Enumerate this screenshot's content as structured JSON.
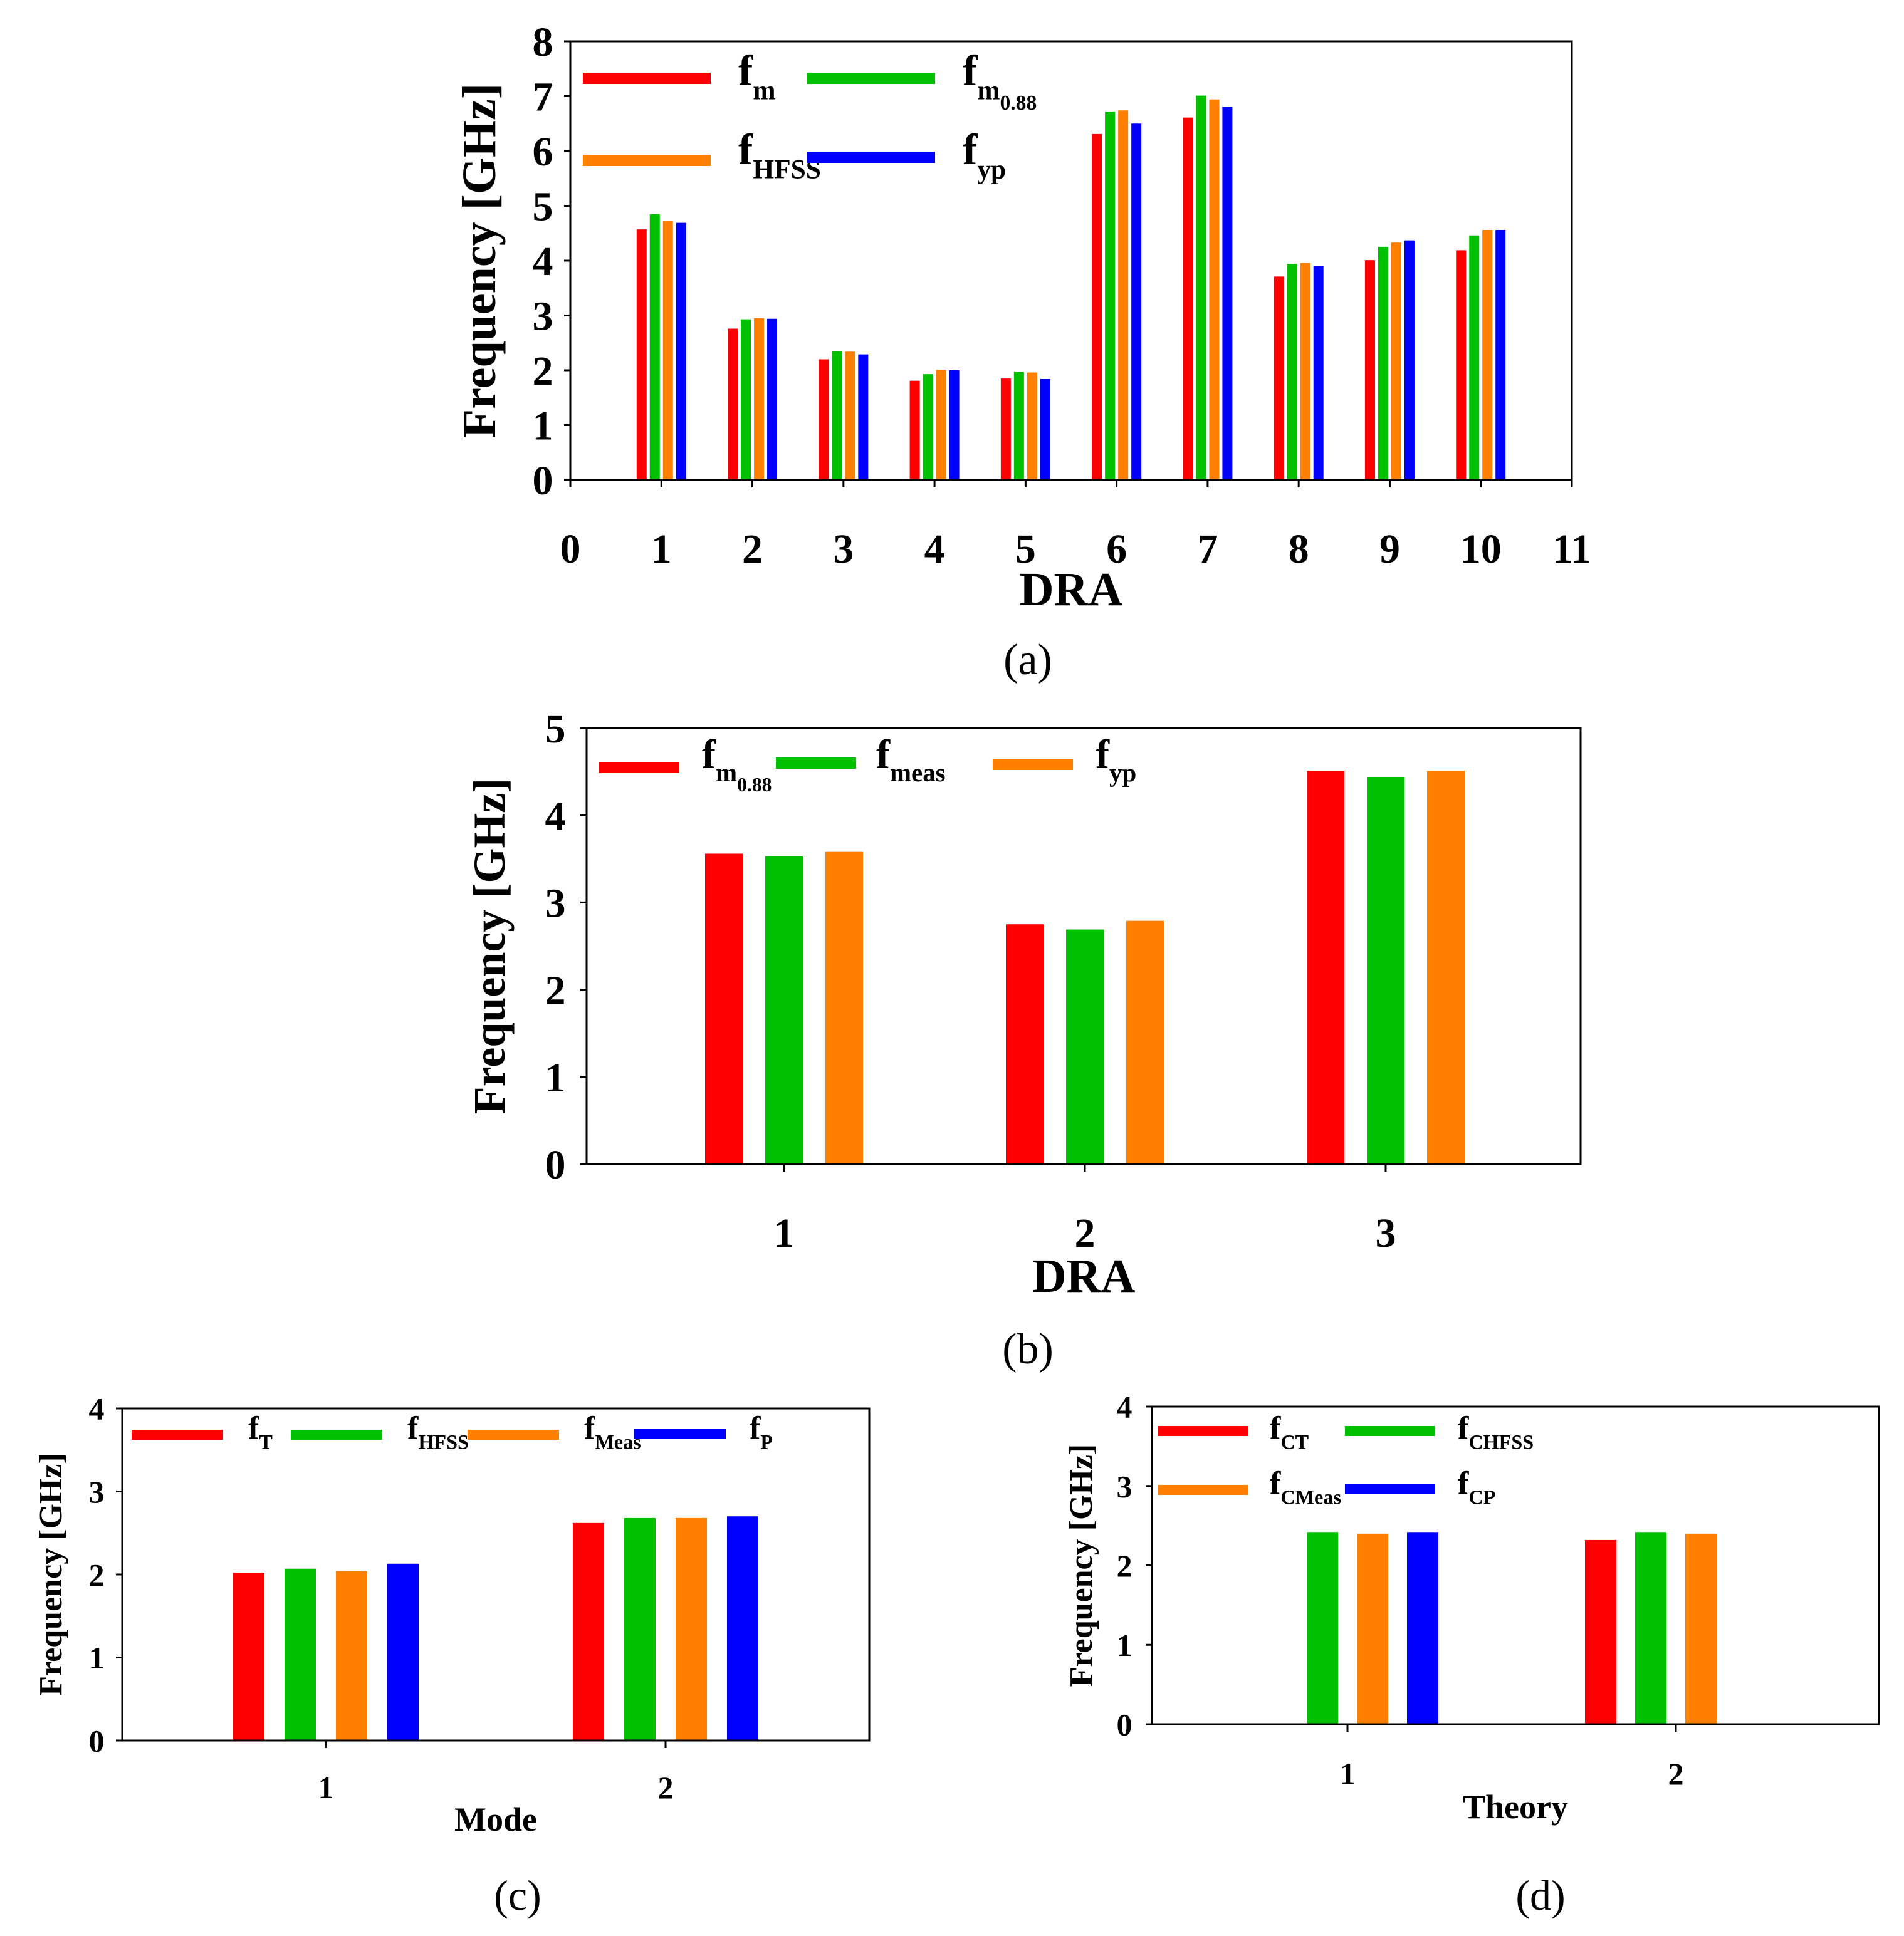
{
  "figure": {
    "panels": [
      {
        "caption": "(a)"
      },
      {
        "caption": "(b)"
      },
      {
        "caption": "(c)"
      },
      {
        "caption": "(d)"
      }
    ]
  },
  "chart_data": [
    {
      "id": "a",
      "type": "bar",
      "title": "",
      "xlabel": "DRA",
      "ylabel": "Frequency [GHz]",
      "xlim": [
        0,
        11
      ],
      "ylim": [
        0,
        8
      ],
      "x_ticks": [
        "0",
        "1",
        "2",
        "3",
        "4",
        "5",
        "6",
        "7",
        "8",
        "9",
        "10",
        "11"
      ],
      "y_ticks": [
        "0",
        "1",
        "2",
        "3",
        "4",
        "5",
        "6",
        "7",
        "8"
      ],
      "categories": [
        "1",
        "2",
        "3",
        "4",
        "5",
        "6",
        "7",
        "8",
        "9",
        "10"
      ],
      "legend_position": "top-left",
      "series": [
        {
          "name": "f",
          "sub": "m",
          "subsub": "",
          "color": "#ff0000",
          "values": [
            4.57,
            2.76,
            2.2,
            1.81,
            1.85,
            6.31,
            6.61,
            3.71,
            4.01,
            4.19
          ]
        },
        {
          "name": "f",
          "sub": "m",
          "subsub": "0.88",
          "color": "#00c000",
          "values": [
            4.85,
            2.93,
            2.35,
            1.93,
            1.97,
            6.72,
            7.01,
            3.94,
            4.25,
            4.46
          ]
        },
        {
          "name": "f",
          "sub": "HFSS",
          "subsub": "",
          "color": "#ff8000",
          "values": [
            4.73,
            2.95,
            2.34,
            2.01,
            1.96,
            6.74,
            6.94,
            3.96,
            4.33,
            4.56
          ]
        },
        {
          "name": "f",
          "sub": "yp",
          "subsub": "",
          "color": "#0000ff",
          "values": [
            4.69,
            2.94,
            2.29,
            2.0,
            1.84,
            6.5,
            6.81,
            3.9,
            4.37,
            4.56
          ]
        }
      ]
    },
    {
      "id": "b",
      "type": "bar",
      "title": "",
      "xlabel": "DRA",
      "ylabel": "Frequency [GHz]",
      "ylim": [
        0,
        5
      ],
      "y_ticks": [
        "0",
        "1",
        "2",
        "3",
        "4",
        "5"
      ],
      "categories": [
        "1",
        "2",
        "3"
      ],
      "legend_position": "top-left",
      "series": [
        {
          "name": "f",
          "sub": "m",
          "subsub": "0.88",
          "color": "#ff0000",
          "values": [
            3.56,
            2.75,
            4.51
          ]
        },
        {
          "name": "f",
          "sub": "meas",
          "subsub": "",
          "color": "#00c000",
          "values": [
            3.53,
            2.69,
            4.44
          ]
        },
        {
          "name": "f",
          "sub": "yp",
          "subsub": "",
          "color": "#ff8000",
          "values": [
            3.58,
            2.79,
            4.51
          ]
        }
      ]
    },
    {
      "id": "c",
      "type": "bar",
      "title": "",
      "xlabel": "Mode",
      "ylabel": "Frequency [GHz]",
      "ylim": [
        0,
        4
      ],
      "y_ticks": [
        "0",
        "1",
        "2",
        "3",
        "4"
      ],
      "categories": [
        "1",
        "2"
      ],
      "legend_position": "top",
      "series": [
        {
          "name": "f",
          "sub": "T",
          "subsub": "",
          "color": "#ff0000",
          "values": [
            2.02,
            2.62
          ]
        },
        {
          "name": "f",
          "sub": "HFSS",
          "subsub": "",
          "color": "#00c000",
          "values": [
            2.07,
            2.68
          ]
        },
        {
          "name": "f",
          "sub": "Meas",
          "subsub": "",
          "color": "#ff8000",
          "values": [
            2.04,
            2.68
          ]
        },
        {
          "name": "f",
          "sub": "P",
          "subsub": "",
          "color": "#0000ff",
          "values": [
            2.13,
            2.7
          ]
        }
      ]
    },
    {
      "id": "d",
      "type": "bar",
      "title": "",
      "xlabel": "Theory",
      "ylabel": "Frequency [GHz]",
      "ylim": [
        0,
        4
      ],
      "y_ticks": [
        "0",
        "1",
        "2",
        "3",
        "4"
      ],
      "categories": [
        "1",
        "2"
      ],
      "legend_position": "top-left",
      "series": [
        {
          "name": "f",
          "sub": "CT",
          "subsub": "",
          "color": "#ff0000",
          "values": [
            null,
            2.32
          ]
        },
        {
          "name": "f",
          "sub": "CHFSS",
          "subsub": "",
          "color": "#00c000",
          "values": [
            2.42,
            2.42
          ]
        },
        {
          "name": "f",
          "sub": "CMeas",
          "subsub": "",
          "color": "#ff8000",
          "values": [
            2.4,
            2.4
          ]
        },
        {
          "name": "f",
          "sub": "CP",
          "subsub": "",
          "color": "#0000ff",
          "values": [
            2.42,
            null
          ]
        }
      ]
    }
  ]
}
